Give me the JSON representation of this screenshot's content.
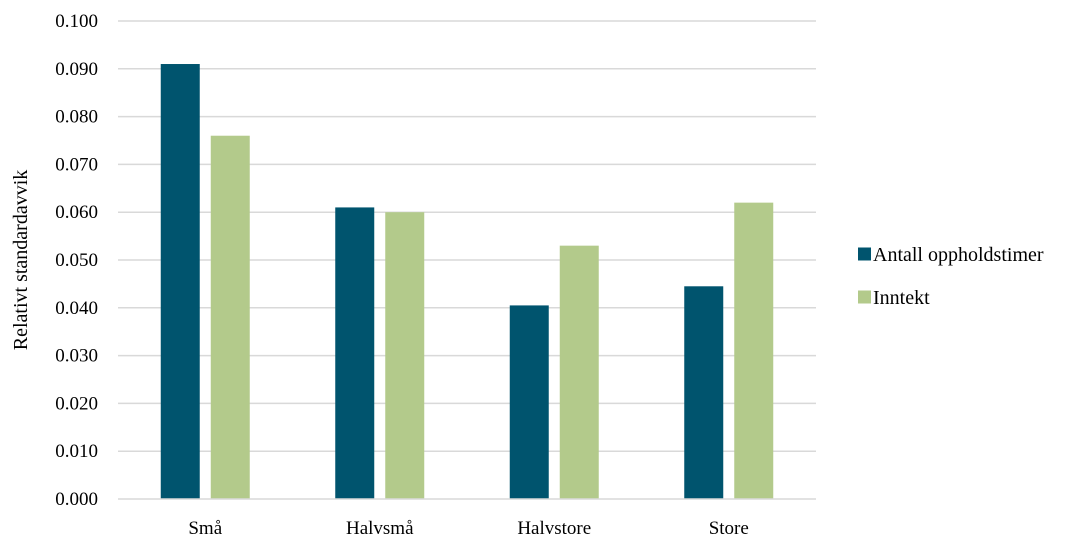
{
  "chart_data": {
    "type": "bar",
    "title": "",
    "xlabel": "",
    "ylabel": "Relativt standardavvik",
    "categories": [
      "Små",
      "Halvsmå",
      "Halvstore",
      "Store"
    ],
    "series": [
      {
        "name": "Antall oppholdstimer",
        "color": "#00546E",
        "values": [
          0.091,
          0.061,
          0.0405,
          0.0445
        ]
      },
      {
        "name": "Inntekt",
        "color": "#B3CA8B",
        "values": [
          0.076,
          0.06,
          0.053,
          0.062
        ]
      }
    ],
    "ylim": [
      0,
      0.1
    ],
    "yticks": [
      "0.000",
      "0.010",
      "0.020",
      "0.030",
      "0.040",
      "0.050",
      "0.060",
      "0.070",
      "0.080",
      "0.090",
      "0.100"
    ],
    "grid": true,
    "legend": "right"
  }
}
